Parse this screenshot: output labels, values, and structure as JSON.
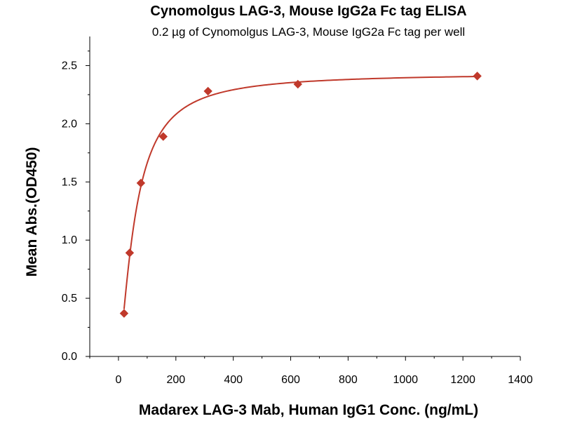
{
  "colors": {
    "series": "#c0392b",
    "axis": "#000000",
    "background": "#ffffff"
  },
  "chart_data": {
    "type": "scatter",
    "title": "Cynomolgus LAG-3, Mouse IgG2a Fc tag ELISA",
    "subtitle": "0.2 µg of Cynomolgus LAG-3, Mouse IgG2a Fc tag per well",
    "xlabel": "Madarex LAG-3 Mab, Human IgG1 Conc. (ng/mL)",
    "ylabel": "Mean Abs.(OD450)",
    "xlim": [
      -100,
      1400
    ],
    "ylim": [
      0,
      2.75
    ],
    "xticks": [
      0,
      200,
      400,
      600,
      800,
      1000,
      1200,
      1400
    ],
    "yticks": [
      0.0,
      0.5,
      1.0,
      1.5,
      2.0,
      2.5
    ],
    "xtick_labels": [
      "0",
      "200",
      "400",
      "600",
      "800",
      "1000",
      "1200",
      "1400"
    ],
    "ytick_labels": [
      "0.0",
      "0.5",
      "1.0",
      "1.5",
      "2.0",
      "2.5"
    ],
    "grid": false,
    "legend": "none",
    "fit_curve": true,
    "x": [
      19.5,
      39,
      78,
      156,
      312,
      625,
      1250
    ],
    "values": [
      0.37,
      0.89,
      1.49,
      1.89,
      2.28,
      2.34,
      2.41
    ]
  }
}
